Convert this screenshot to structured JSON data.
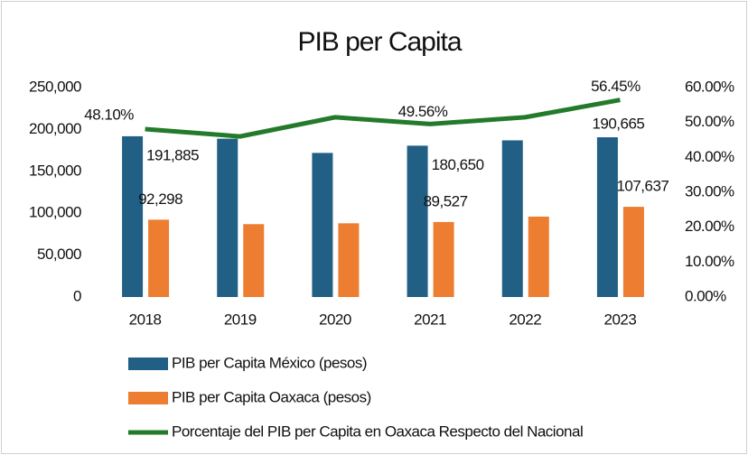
{
  "chart_data": {
    "type": "bar",
    "title": "PIB per Capita",
    "categories": [
      "2018",
      "2019",
      "2020",
      "2021",
      "2022",
      "2023"
    ],
    "series": [
      {
        "name": "PIB per Capita México (pesos)",
        "color": "#215f84",
        "values": [
          191885,
          189000,
          172000,
          180650,
          187000,
          190665
        ],
        "value_labels": [
          "191,885",
          null,
          null,
          "180,650",
          null,
          "190,665"
        ]
      },
      {
        "name": "PIB per Capita Oaxaca (pesos)",
        "color": "#ed7d31",
        "values": [
          92298,
          87000,
          88000,
          89527,
          96000,
          107637
        ],
        "value_labels": [
          "92,298",
          null,
          null,
          "89,527",
          null,
          "107,637"
        ]
      },
      {
        "name": "Porcentaje del PIB per Capita en Oaxaca Respecto del Nacional",
        "color": "#237a2a",
        "type": "line",
        "axis": "y2",
        "values": [
          48.1,
          46.0,
          51.5,
          49.56,
          51.5,
          56.45
        ],
        "value_labels": [
          "48.10%",
          null,
          null,
          "49.56%",
          null,
          "56.45%"
        ]
      }
    ],
    "ylim": [
      0,
      250000
    ],
    "yticks": [
      0,
      {
        "value": 50000,
        "label": "50,000"
      },
      {
        "value": 100000,
        "label": "100,000"
      },
      {
        "value": 150000,
        "label": "150,000"
      },
      {
        "value": 200000,
        "label": "200,000"
      },
      {
        "value": 250000,
        "label": "250,000"
      }
    ],
    "y2lim": [
      0,
      60
    ],
    "y2ticks": [
      {
        "value": 0,
        "label": "0.00%"
      },
      {
        "value": 10,
        "label": "10.00%"
      },
      {
        "value": 20,
        "label": "20.00%"
      },
      {
        "value": 30,
        "label": "30.00%"
      },
      {
        "value": 40,
        "label": "40.00%"
      },
      {
        "value": 50,
        "label": "50.00%"
      },
      {
        "value": 60,
        "label": "60.00%"
      }
    ],
    "grid": false,
    "legend": "bottom"
  }
}
